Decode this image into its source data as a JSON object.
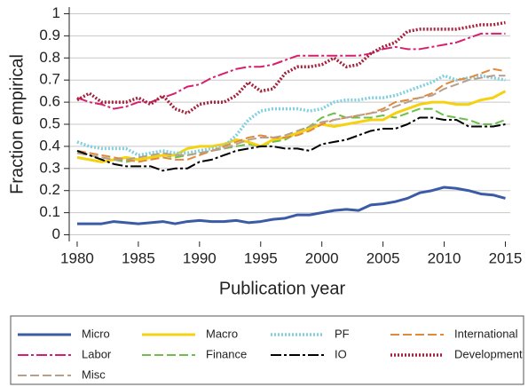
{
  "chart_data": {
    "type": "line",
    "x_label": "Publication year",
    "y_label": "Fraction empirical",
    "x": [
      1980,
      1981,
      1982,
      1983,
      1984,
      1985,
      1986,
      1987,
      1988,
      1989,
      1990,
      1991,
      1992,
      1993,
      1994,
      1995,
      1996,
      1997,
      1998,
      1999,
      2000,
      2001,
      2002,
      2003,
      2004,
      2005,
      2006,
      2007,
      2008,
      2009,
      2010,
      2011,
      2012,
      2013,
      2014,
      2015
    ],
    "xlim": [
      1979.35,
      2015.4
    ],
    "ylim": [
      -0.03,
      1.03
    ],
    "xticks": [
      1980,
      1985,
      1990,
      1995,
      2000,
      2005,
      2010,
      2015
    ],
    "yticks": [
      0,
      0.1,
      0.2,
      0.3,
      0.4,
      0.5,
      0.6,
      0.7,
      0.8,
      0.9,
      1
    ],
    "grid": true,
    "legend": "bottom",
    "series": [
      {
        "name": "Micro",
        "color": "#3b5ba6",
        "style": "solid",
        "values": [
          0.05,
          0.05,
          0.05,
          0.06,
          0.055,
          0.05,
          0.055,
          0.06,
          0.05,
          0.06,
          0.065,
          0.06,
          0.06,
          0.065,
          0.055,
          0.06,
          0.07,
          0.075,
          0.09,
          0.09,
          0.1,
          0.11,
          0.115,
          0.11,
          0.135,
          0.14,
          0.15,
          0.165,
          0.19,
          0.2,
          0.215,
          0.21,
          0.2,
          0.185,
          0.18,
          0.165
        ]
      },
      {
        "name": "Macro",
        "color": "#f4d20f",
        "style": "solid",
        "values": [
          0.35,
          0.34,
          0.33,
          0.34,
          0.35,
          0.34,
          0.35,
          0.36,
          0.36,
          0.39,
          0.4,
          0.4,
          0.41,
          0.43,
          0.42,
          0.4,
          0.43,
          0.44,
          0.46,
          0.48,
          0.5,
          0.49,
          0.5,
          0.51,
          0.52,
          0.52,
          0.55,
          0.57,
          0.59,
          0.6,
          0.6,
          0.59,
          0.59,
          0.61,
          0.62,
          0.65
        ]
      },
      {
        "name": "PF",
        "color": "#80d0de",
        "style": "dotted",
        "values": [
          0.42,
          0.4,
          0.39,
          0.39,
          0.39,
          0.36,
          0.37,
          0.38,
          0.37,
          0.37,
          0.38,
          0.39,
          0.4,
          0.45,
          0.52,
          0.56,
          0.57,
          0.57,
          0.57,
          0.56,
          0.57,
          0.6,
          0.61,
          0.61,
          0.62,
          0.62,
          0.63,
          0.65,
          0.67,
          0.69,
          0.72,
          0.7,
          0.71,
          0.72,
          0.71,
          0.7
        ]
      },
      {
        "name": "International",
        "color": "#e08a3e",
        "style": "dashed",
        "values": [
          0.38,
          0.37,
          0.36,
          0.35,
          0.34,
          0.33,
          0.34,
          0.35,
          0.34,
          0.34,
          0.36,
          0.38,
          0.4,
          0.42,
          0.44,
          0.45,
          0.44,
          0.44,
          0.45,
          0.47,
          0.5,
          0.52,
          0.53,
          0.54,
          0.55,
          0.57,
          0.6,
          0.61,
          0.62,
          0.64,
          0.68,
          0.7,
          0.71,
          0.73,
          0.75,
          0.74
        ]
      },
      {
        "name": "Labor",
        "color": "#d6206f",
        "style": "dashdot",
        "values": [
          0.62,
          0.6,
          0.59,
          0.57,
          0.58,
          0.6,
          0.6,
          0.62,
          0.64,
          0.67,
          0.68,
          0.71,
          0.73,
          0.75,
          0.76,
          0.76,
          0.77,
          0.79,
          0.81,
          0.81,
          0.81,
          0.81,
          0.81,
          0.81,
          0.82,
          0.84,
          0.85,
          0.84,
          0.84,
          0.85,
          0.86,
          0.87,
          0.89,
          0.91,
          0.91,
          0.91
        ]
      },
      {
        "name": "Finance",
        "color": "#6cbf4b",
        "style": "dashed",
        "values": [
          0.37,
          0.36,
          0.35,
          0.34,
          0.33,
          0.34,
          0.35,
          0.36,
          0.35,
          0.36,
          0.37,
          0.38,
          0.39,
          0.4,
          0.41,
          0.4,
          0.42,
          0.43,
          0.46,
          0.49,
          0.53,
          0.55,
          0.53,
          0.53,
          0.53,
          0.54,
          0.53,
          0.55,
          0.57,
          0.57,
          0.54,
          0.53,
          0.52,
          0.5,
          0.5,
          0.52
        ]
      },
      {
        "name": "IO",
        "color": "#000000",
        "style": "dashdot",
        "values": [
          0.38,
          0.36,
          0.34,
          0.32,
          0.31,
          0.31,
          0.31,
          0.29,
          0.3,
          0.3,
          0.33,
          0.34,
          0.36,
          0.38,
          0.39,
          0.4,
          0.4,
          0.39,
          0.39,
          0.38,
          0.41,
          0.42,
          0.43,
          0.45,
          0.47,
          0.48,
          0.48,
          0.5,
          0.53,
          0.53,
          0.52,
          0.52,
          0.49,
          0.49,
          0.49,
          0.5
        ]
      },
      {
        "name": "Development",
        "color": "#a3213b",
        "style": "dotted",
        "values": [
          0.61,
          0.64,
          0.6,
          0.6,
          0.6,
          0.62,
          0.59,
          0.63,
          0.57,
          0.55,
          0.59,
          0.6,
          0.6,
          0.63,
          0.69,
          0.65,
          0.66,
          0.73,
          0.76,
          0.76,
          0.77,
          0.8,
          0.76,
          0.77,
          0.82,
          0.85,
          0.87,
          0.92,
          0.93,
          0.93,
          0.93,
          0.93,
          0.94,
          0.95,
          0.95,
          0.96
        ]
      },
      {
        "name": "Misc",
        "color": "#b89f8c",
        "style": "dashed",
        "values": [
          0.37,
          0.36,
          0.35,
          0.34,
          0.34,
          0.35,
          0.36,
          0.37,
          0.36,
          0.36,
          0.37,
          0.38,
          0.39,
          0.41,
          0.43,
          0.44,
          0.44,
          0.45,
          0.47,
          0.49,
          0.51,
          0.52,
          0.53,
          0.54,
          0.55,
          0.56,
          0.58,
          0.6,
          0.62,
          0.63,
          0.66,
          0.68,
          0.7,
          0.71,
          0.72,
          0.72
        ]
      }
    ]
  }
}
